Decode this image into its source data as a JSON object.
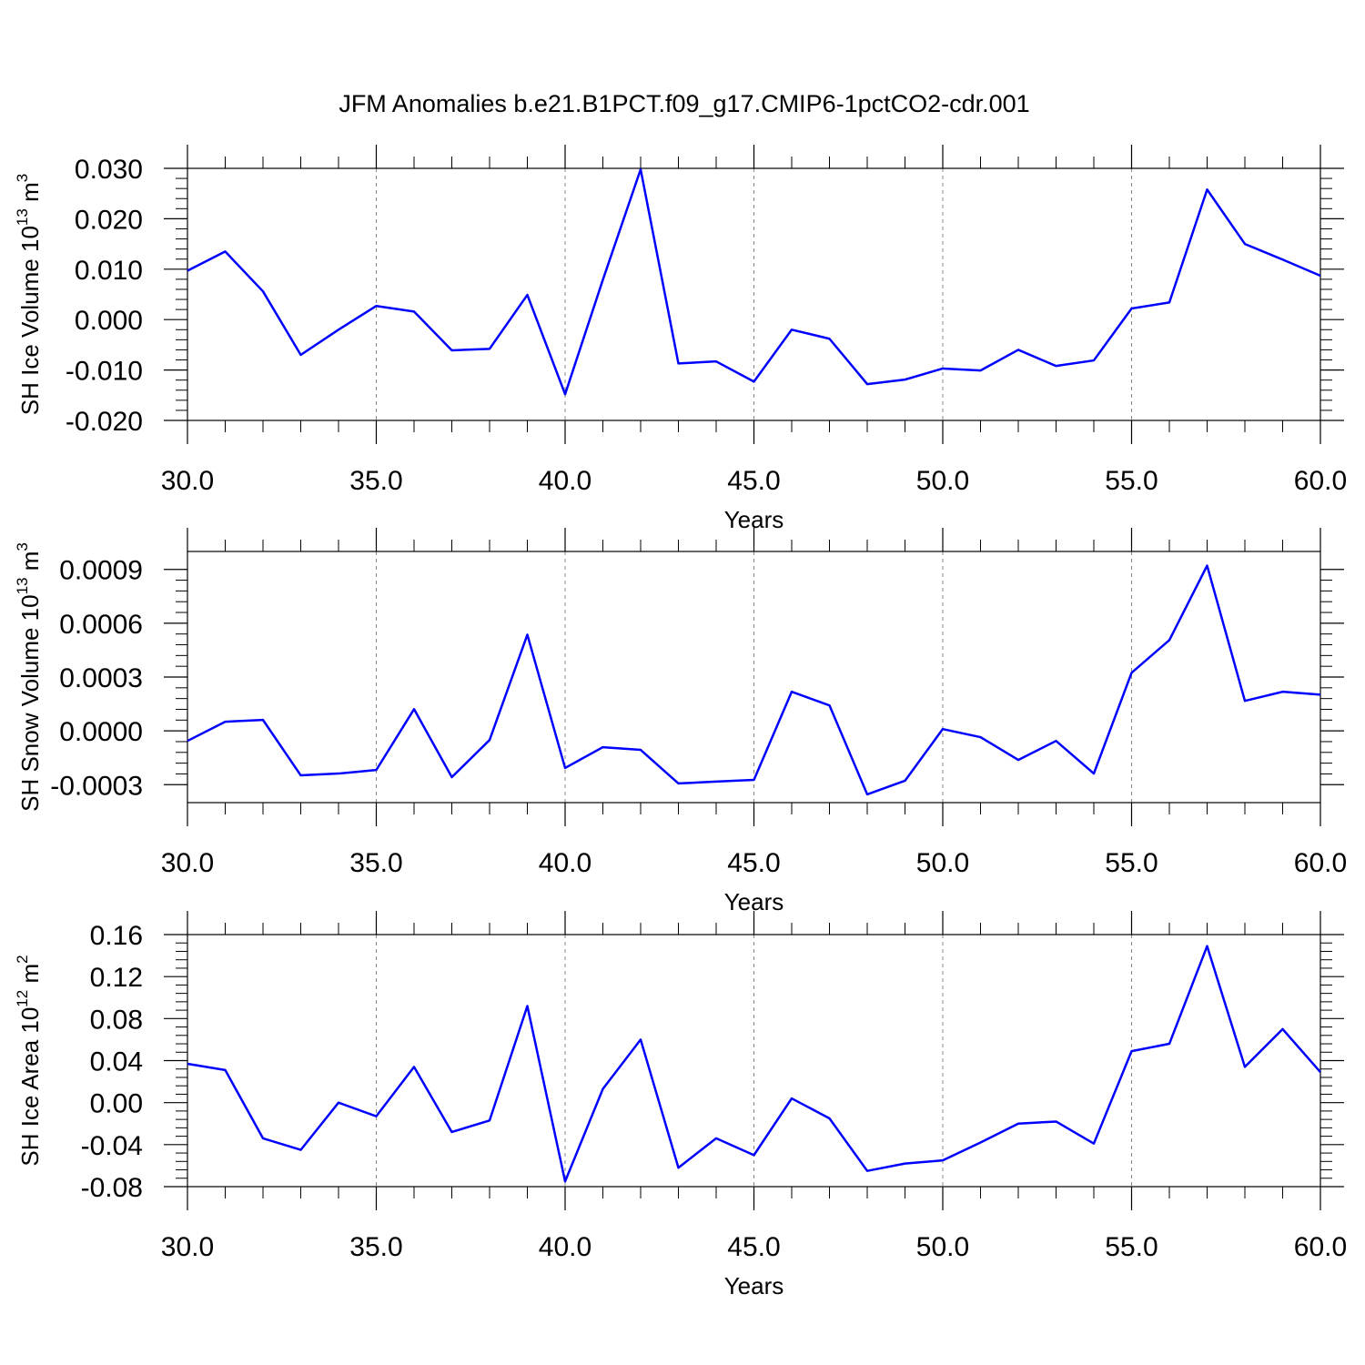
{
  "title": "JFM Anomalies b.e21.B1PCT.f09_g17.CMIP6-1pctCO2-cdr.001",
  "chart_data": [
    {
      "type": "line",
      "xlabel": "Years",
      "ylabel": [
        "SH Ice Volume 10",
        "13",
        " m",
        "3"
      ],
      "x": [
        30,
        31,
        32,
        33,
        34,
        35,
        36,
        37,
        38,
        39,
        40,
        41,
        42,
        43,
        44,
        45,
        46,
        47,
        48,
        49,
        50,
        51,
        52,
        53,
        54,
        55,
        56,
        57,
        58,
        59,
        60
      ],
      "series": [
        {
          "name": "SH Ice Volume",
          "color": "#0000ff",
          "values": [
            0.0097,
            0.0135,
            0.0056,
            -0.007,
            -0.002,
            0.0027,
            0.0016,
            -0.0061,
            -0.0058,
            0.0049,
            -0.0148,
            0.0079,
            0.0298,
            -0.0087,
            -0.0083,
            -0.0123,
            -0.002,
            -0.0038,
            -0.0128,
            -0.0119,
            -0.0097,
            -0.0101,
            -0.006,
            -0.0092,
            -0.0081,
            0.0022,
            0.0034,
            0.0258,
            0.015,
            0.0119,
            0.0087
          ]
        }
      ],
      "xlim": [
        30,
        60
      ],
      "xticks": [
        {
          "value": 30,
          "label": "30.0"
        },
        {
          "value": 35,
          "label": "35.0"
        },
        {
          "value": 40,
          "label": "40.0"
        },
        {
          "value": 45,
          "label": "45.0"
        },
        {
          "value": 50,
          "label": "50.0"
        },
        {
          "value": 55,
          "label": "55.0"
        },
        {
          "value": 60,
          "label": "60.0"
        }
      ],
      "ylim": [
        -0.02,
        0.03
      ],
      "yticks": [
        {
          "value": -0.02,
          "label": "-0.020"
        },
        {
          "value": -0.01,
          "label": "-0.010"
        },
        {
          "value": 0,
          "label": "0.000"
        },
        {
          "value": 0.01,
          "label": "0.010"
        },
        {
          "value": 0.02,
          "label": "0.020"
        },
        {
          "value": 0.03,
          "label": "0.030"
        }
      ],
      "xgrid": true
    },
    {
      "type": "line",
      "xlabel": "Years",
      "ylabel": [
        "SH Snow Volume 10",
        "13",
        " m",
        "3"
      ],
      "x": [
        30,
        31,
        32,
        33,
        34,
        35,
        36,
        37,
        38,
        39,
        40,
        41,
        42,
        43,
        44,
        45,
        46,
        47,
        48,
        49,
        50,
        51,
        52,
        53,
        54,
        55,
        56,
        57,
        58,
        59,
        60
      ],
      "series": [
        {
          "name": "SH Snow Volume",
          "color": "#0000ff",
          "values": [
            -5.6e-05,
            5.1e-05,
            6.1e-05,
            -0.000248,
            -0.000238,
            -0.000218,
            0.000121,
            -0.000258,
            -5.1e-05,
            0.000536,
            -0.000207,
            -9.1e-05,
            -0.000106,
            -0.000293,
            -0.000283,
            -0.000273,
            0.000218,
            0.000142,
            -0.000354,
            -0.000278,
            1e-05,
            -3.5e-05,
            -0.000162,
            -5.6e-05,
            -0.000238,
            0.000324,
            0.000506,
            0.000921,
            0.000167,
            0.000218,
            0.000202
          ]
        }
      ],
      "xlim": [
        30,
        60
      ],
      "xticks": [
        {
          "value": 30,
          "label": "30.0"
        },
        {
          "value": 35,
          "label": "35.0"
        },
        {
          "value": 40,
          "label": "40.0"
        },
        {
          "value": 45,
          "label": "45.0"
        },
        {
          "value": 50,
          "label": "50.0"
        },
        {
          "value": 55,
          "label": "55.0"
        },
        {
          "value": 60,
          "label": "60.0"
        }
      ],
      "ylim": [
        -0.0004,
        0.001
      ],
      "yticks": [
        {
          "value": -0.0003,
          "label": "-0.0003"
        },
        {
          "value": 0,
          "label": "0.0000"
        },
        {
          "value": 0.0003,
          "label": "0.0003"
        },
        {
          "value": 0.0006,
          "label": "0.0006"
        },
        {
          "value": 0.0009,
          "label": "0.0009"
        }
      ],
      "xgrid": true
    },
    {
      "type": "line",
      "xlabel": "Years",
      "ylabel": [
        "SH Ice Area 10",
        "12",
        " m",
        "2"
      ],
      "x": [
        30,
        31,
        32,
        33,
        34,
        35,
        36,
        37,
        38,
        39,
        40,
        41,
        42,
        43,
        44,
        45,
        46,
        47,
        48,
        49,
        50,
        51,
        52,
        53,
        54,
        55,
        56,
        57,
        58,
        59,
        60
      ],
      "series": [
        {
          "name": "SH Ice Area",
          "color": "#0000ff",
          "values": [
            0.037,
            0.031,
            -0.034,
            -0.045,
            0.0,
            -0.013,
            0.034,
            -0.028,
            -0.017,
            0.092,
            -0.075,
            0.013,
            0.06,
            -0.062,
            -0.034,
            -0.05,
            0.004,
            -0.015,
            -0.065,
            -0.058,
            -0.055,
            -0.038,
            -0.02,
            -0.018,
            -0.039,
            0.049,
            0.056,
            0.149,
            0.034,
            0.07,
            0.029
          ]
        }
      ],
      "xlim": [
        30,
        60
      ],
      "xticks": [
        {
          "value": 30,
          "label": "30.0"
        },
        {
          "value": 35,
          "label": "35.0"
        },
        {
          "value": 40,
          "label": "40.0"
        },
        {
          "value": 45,
          "label": "45.0"
        },
        {
          "value": 50,
          "label": "50.0"
        },
        {
          "value": 55,
          "label": "55.0"
        },
        {
          "value": 60,
          "label": "60.0"
        }
      ],
      "ylim": [
        -0.08,
        0.16
      ],
      "yticks": [
        {
          "value": -0.08,
          "label": "-0.08"
        },
        {
          "value": -0.04,
          "label": "-0.04"
        },
        {
          "value": 0,
          "label": "0.00"
        },
        {
          "value": 0.04,
          "label": "0.04"
        },
        {
          "value": 0.08,
          "label": "0.08"
        },
        {
          "value": 0.12,
          "label": "0.12"
        },
        {
          "value": 0.16,
          "label": "0.16"
        }
      ],
      "xgrid": true
    }
  ]
}
